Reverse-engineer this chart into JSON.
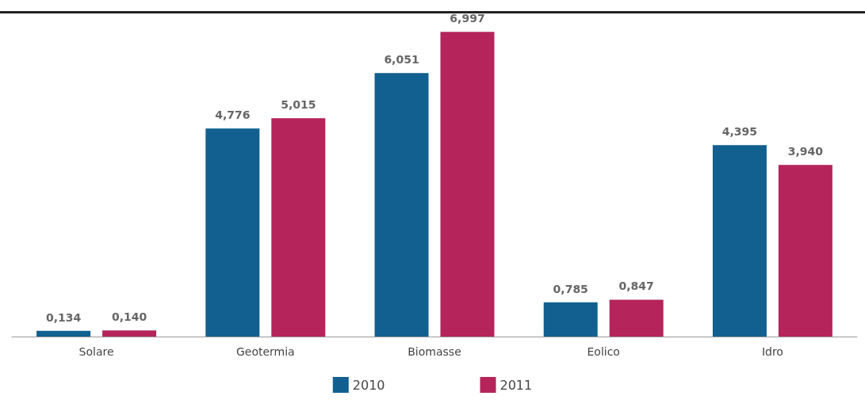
{
  "chart_data": {
    "type": "bar",
    "categories": [
      "Solare",
      "Geotermia",
      "Biomasse",
      "Eolico",
      "Idro"
    ],
    "series": [
      {
        "name": "2010",
        "color": "#11608f",
        "values": [
          0.134,
          4.776,
          6.051,
          0.785,
          4.395
        ],
        "value_labels": [
          "0,134",
          "4,776",
          "6,051",
          "0,785",
          "4,395"
        ]
      },
      {
        "name": "2011",
        "color": "#b5245b",
        "values": [
          0.14,
          5.015,
          6.997,
          0.847,
          3.94
        ],
        "value_labels": [
          "0,140",
          "5,015",
          "6,997",
          "0,847",
          "3,940"
        ]
      }
    ],
    "legend": "bottom"
  }
}
